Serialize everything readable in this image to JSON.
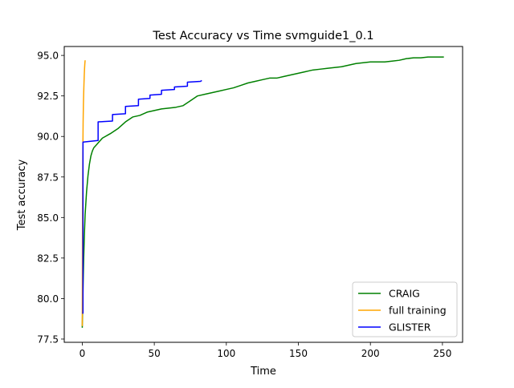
{
  "chart_data": {
    "type": "line",
    "title": "Test Accuracy vs Time svmguide1_0.1",
    "xlabel": "Time",
    "ylabel": "Test accuracy",
    "xlim": [
      -12.5,
      264
    ],
    "ylim": [
      77.3,
      95.55
    ],
    "x_ticks": [
      0,
      50,
      100,
      150,
      200,
      250
    ],
    "x_tick_labels": [
      "0",
      "50",
      "100",
      "150",
      "200",
      "250"
    ],
    "y_ticks": [
      77.5,
      80.0,
      82.5,
      85.0,
      87.5,
      90.0,
      92.5,
      95.0
    ],
    "y_tick_labels": [
      "77.5",
      "80.0",
      "82.5",
      "85.0",
      "87.5",
      "90.0",
      "92.5",
      "95.0"
    ],
    "grid": false,
    "legend_position": "lower-right",
    "series": [
      {
        "name": "CRAIG",
        "color": "#008000",
        "x": [
          0,
          0.5,
          1,
          1.5,
          2,
          3,
          4,
          5,
          6,
          7,
          8,
          10,
          12,
          14,
          16,
          18,
          20,
          25,
          30,
          35,
          40,
          45,
          50,
          55,
          60,
          65,
          70,
          75,
          80,
          85,
          90,
          95,
          100,
          105,
          110,
          115,
          120,
          125,
          130,
          135,
          140,
          145,
          150,
          155,
          160,
          165,
          170,
          175,
          180,
          185,
          190,
          195,
          200,
          205,
          210,
          215,
          220,
          225,
          230,
          235,
          240,
          245,
          251
        ],
        "y": [
          78.2,
          80.5,
          82.5,
          84.0,
          85.2,
          86.6,
          87.6,
          88.3,
          88.8,
          89.1,
          89.3,
          89.5,
          89.7,
          89.9,
          90.0,
          90.1,
          90.2,
          90.5,
          90.9,
          91.2,
          91.3,
          91.5,
          91.6,
          91.7,
          91.75,
          91.8,
          91.9,
          92.2,
          92.5,
          92.6,
          92.7,
          92.8,
          92.9,
          93.0,
          93.15,
          93.3,
          93.4,
          93.5,
          93.6,
          93.6,
          93.7,
          93.8,
          93.9,
          94.0,
          94.1,
          94.15,
          94.2,
          94.25,
          94.3,
          94.4,
          94.5,
          94.55,
          94.6,
          94.6,
          94.6,
          94.65,
          94.7,
          94.8,
          94.85,
          94.85,
          94.9,
          94.9,
          94.9
        ]
      },
      {
        "name": "full training",
        "color": "#FFA500",
        "x": [
          0,
          0.2,
          0.4,
          0.6,
          0.8,
          1.0,
          1.2,
          1.4,
          1.6,
          1.8,
          2.0
        ],
        "y": [
          78.3,
          85.5,
          89.0,
          90.9,
          92.0,
          92.7,
          93.3,
          93.8,
          94.2,
          94.5,
          94.7
        ]
      },
      {
        "name": "GLISTER",
        "color": "#0000FF",
        "x": [
          0,
          0.5,
          0.5,
          11,
          11,
          21,
          21,
          30,
          30,
          39,
          39,
          47,
          47,
          55,
          55,
          64,
          64,
          73,
          73,
          82,
          83
        ],
        "y": [
          79.1,
          79.1,
          89.65,
          89.75,
          90.9,
          90.95,
          91.35,
          91.4,
          91.85,
          91.9,
          92.3,
          92.35,
          92.55,
          92.6,
          92.85,
          92.9,
          93.05,
          93.1,
          93.35,
          93.4,
          93.45
        ]
      }
    ]
  }
}
